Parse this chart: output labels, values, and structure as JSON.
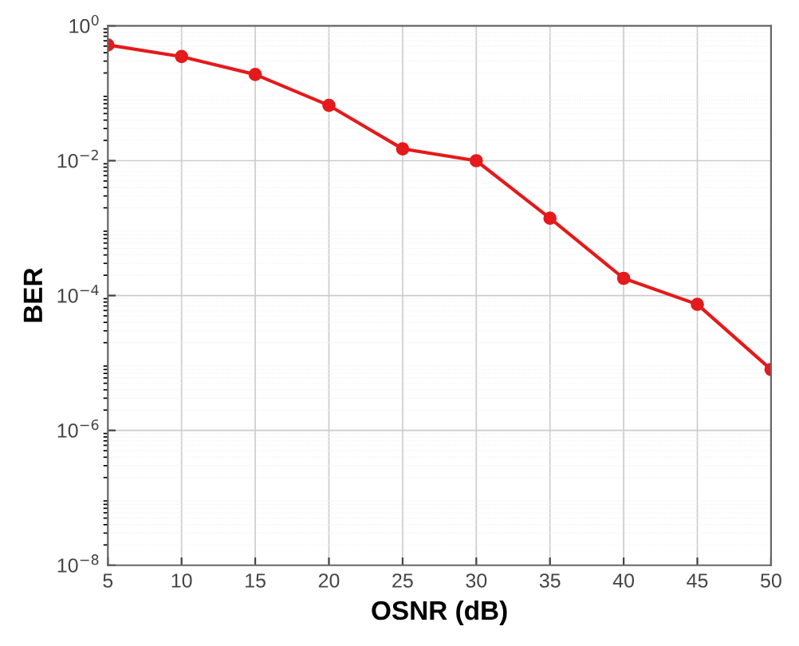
{
  "chart_data": {
    "type": "line",
    "xlabel": "OSNR (dB)",
    "ylabel": "BER",
    "x": [
      5,
      10,
      15,
      20,
      25,
      30,
      35,
      40,
      45,
      50
    ],
    "series": [
      {
        "color": "#e41a1c",
        "values": [
          0.52,
          0.35,
          0.19,
          0.066,
          0.015,
          0.01,
          0.0014,
          0.00018,
          7.4e-05,
          8e-06
        ]
      }
    ],
    "xlim": [
      5,
      50
    ],
    "xticks": [
      5,
      10,
      15,
      20,
      25,
      30,
      35,
      40,
      45,
      50
    ],
    "ylim": [
      1e-08,
      1
    ],
    "yticks": [
      {
        "value": 1e-08,
        "label": "10$^{−8}$"
      },
      {
        "value": 1e-06,
        "label": "10$^{−6}$"
      },
      {
        "value": 0.0001,
        "label": "10$^{−4}$"
      },
      {
        "value": 0.01,
        "label": "10$^{−2}$"
      },
      {
        "value": 1,
        "label": "10$^{0}$"
      }
    ],
    "log": "y",
    "grid": true,
    "marker": "circle",
    "line_style": "solid"
  }
}
